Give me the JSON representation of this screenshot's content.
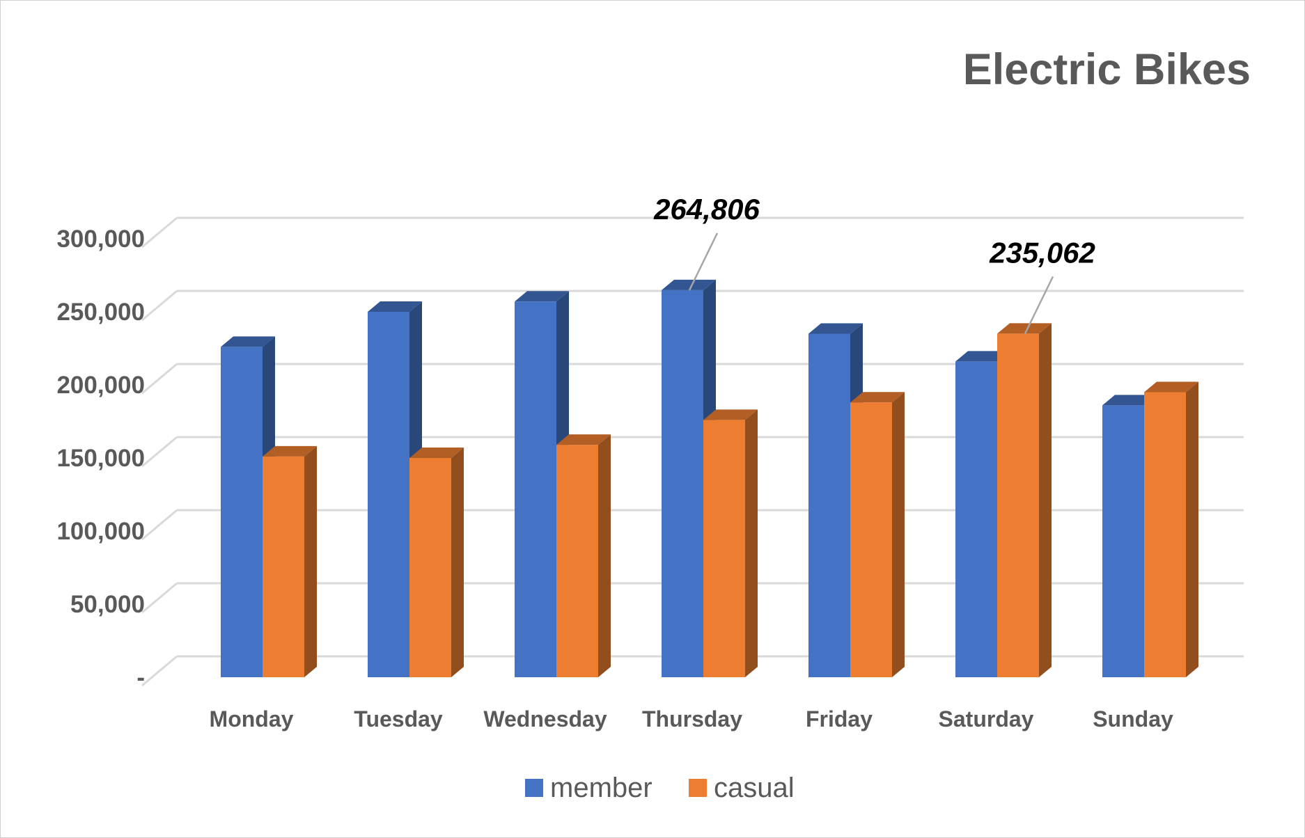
{
  "chart_data": {
    "type": "bar",
    "style": "3d-clustered-column",
    "title": "Electric Bikes",
    "xlabel": "",
    "ylabel": "",
    "categories": [
      "Monday",
      "Tuesday",
      "Wednesday",
      "Thursday",
      "Friday",
      "Saturday",
      "Sunday"
    ],
    "series": [
      {
        "name": "member",
        "color": "#4472C4",
        "values": [
          226000,
          250000,
          257000,
          264806,
          235000,
          216000,
          186000
        ]
      },
      {
        "name": "casual",
        "color": "#ED7D31",
        "values": [
          151000,
          150000,
          159000,
          176000,
          188000,
          235062,
          195000
        ]
      }
    ],
    "ylim": [
      0,
      300000
    ],
    "yticks": [
      {
        "value": 0,
        "label": "-"
      },
      {
        "value": 50000,
        "label": "50,000"
      },
      {
        "value": 100000,
        "label": "100,000"
      },
      {
        "value": 150000,
        "label": "150,000"
      },
      {
        "value": 200000,
        "label": "200,000"
      },
      {
        "value": 250000,
        "label": "250,000"
      },
      {
        "value": 300000,
        "label": "300,000"
      }
    ],
    "grid": true,
    "legend": {
      "position": "bottom",
      "entries": [
        "member",
        "casual"
      ]
    },
    "annotations": [
      {
        "series": "member",
        "category": "Thursday",
        "label": "264,806"
      },
      {
        "series": "casual",
        "category": "Saturday",
        "label": "235,062"
      }
    ]
  }
}
